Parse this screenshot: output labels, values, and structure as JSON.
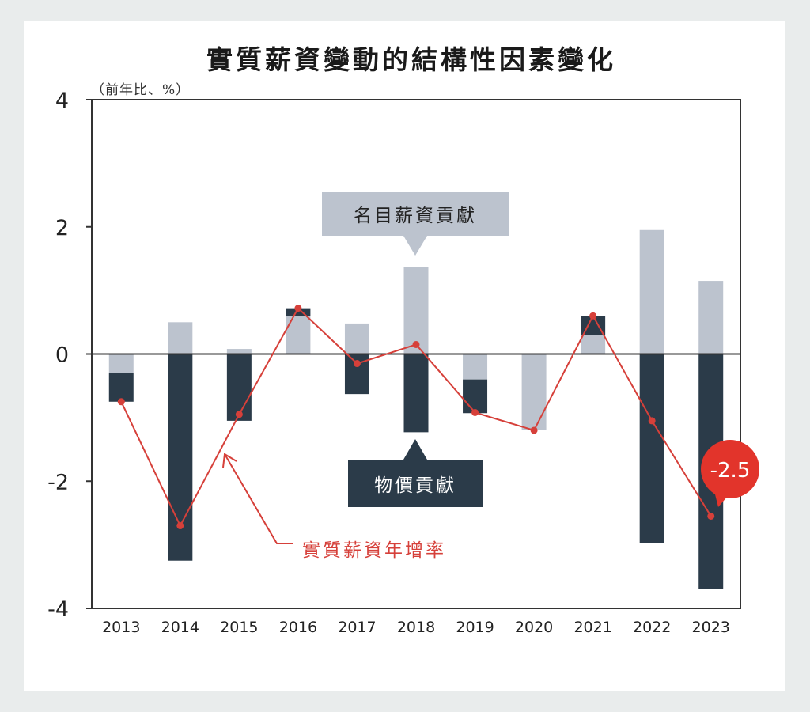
{
  "chart_data": {
    "type": "bar",
    "title": "實質薪資變動的結構性因素變化",
    "ylabel": "（前年比、%）",
    "ylim": [
      -4,
      4
    ],
    "yticks": [
      "4",
      "2",
      "0",
      "-2",
      "-4"
    ],
    "categories": [
      "2013",
      "2014",
      "2015",
      "2016",
      "2017",
      "2018",
      "2019",
      "2020",
      "2021",
      "2022",
      "2023"
    ],
    "stacked": true,
    "series": [
      {
        "name": "名目薪資貢獻",
        "kind": "bar",
        "color": "#bcc3ce",
        "values": [
          -0.3,
          0.5,
          0.08,
          0.6,
          0.48,
          1.37,
          -0.4,
          -1.2,
          0.3,
          1.95,
          1.15
        ]
      },
      {
        "name": "物價貢獻",
        "kind": "bar",
        "color": "#2b3b49",
        "values": [
          -0.45,
          -3.25,
          -1.05,
          0.12,
          -0.63,
          -1.23,
          -0.53,
          0.0,
          0.3,
          -2.97,
          -3.7
        ]
      },
      {
        "name": "實質薪資年增率",
        "kind": "line",
        "color": "#d6403a",
        "values": [
          -0.75,
          -2.7,
          -0.95,
          0.72,
          -0.15,
          0.15,
          -0.92,
          -1.2,
          0.6,
          -1.05,
          -2.55
        ]
      }
    ],
    "annotation_label": "-2.5",
    "grid": false,
    "colors": {
      "axis": "#333333",
      "nominal": "#bcc3ce",
      "price": "#2b3b49",
      "line": "#d6403a",
      "badge": "#e2342b"
    }
  }
}
